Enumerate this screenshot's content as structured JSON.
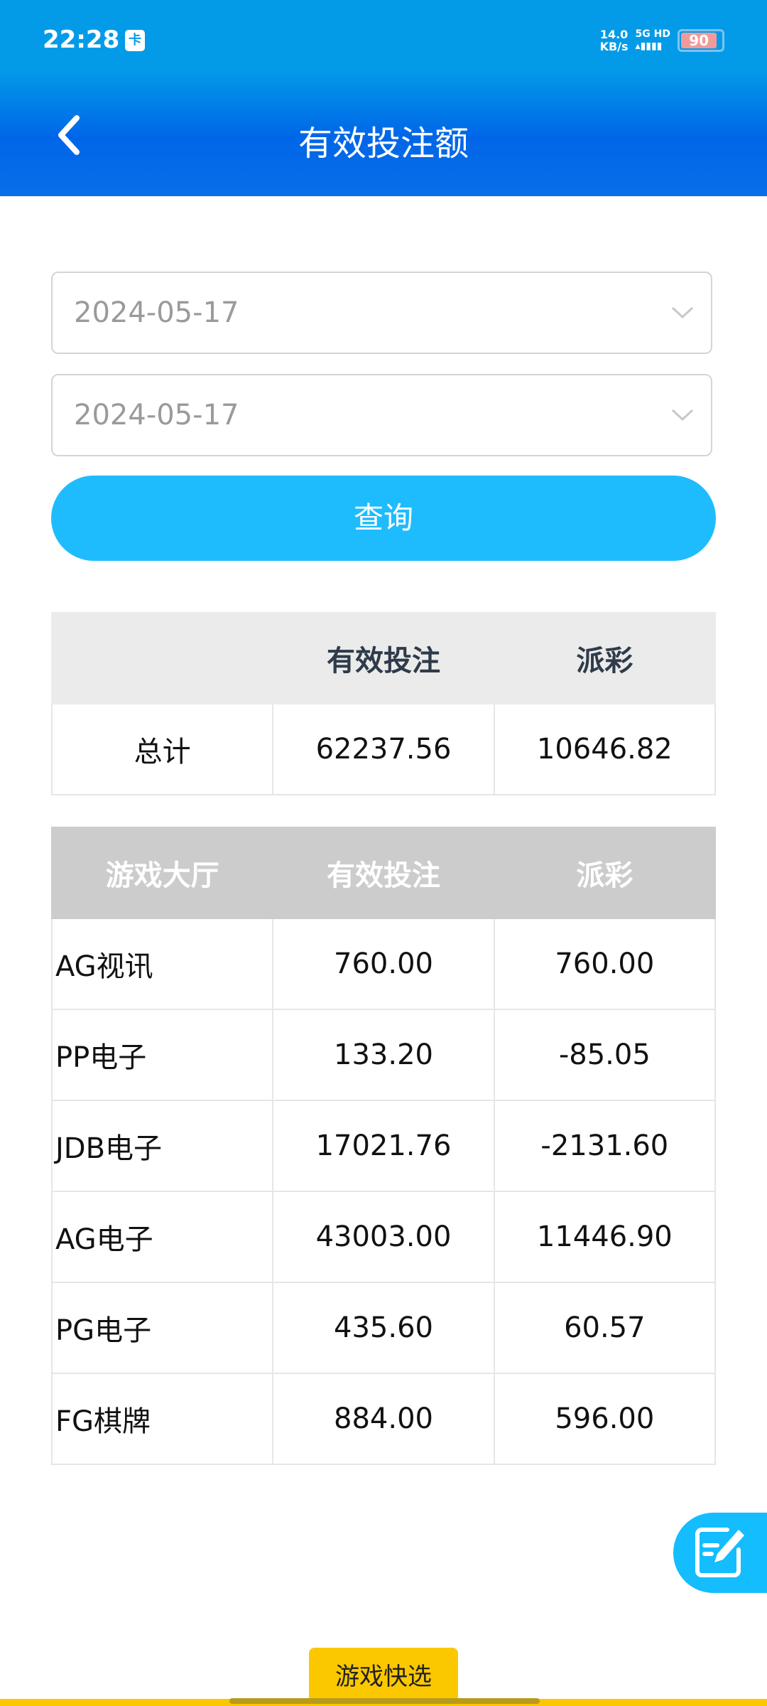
{
  "status_bar": {
    "time": "22:28",
    "sim_icon": "sim-card-icon",
    "speed": "14.0",
    "speed_unit": "KB/s",
    "network": "5G HD",
    "battery": "90"
  },
  "header": {
    "title": "有效投注额",
    "back_icon": "chevron-left-icon"
  },
  "filters": {
    "start_date": "2024-05-17",
    "end_date": "2024-05-17",
    "query_label": "查询"
  },
  "summary": {
    "headers": [
      "",
      "有效投注",
      "派彩"
    ],
    "row": {
      "label": "总计",
      "bet": "62237.56",
      "payout": "10646.82"
    }
  },
  "details": {
    "headers": [
      "游戏大厅",
      "有效投注",
      "派彩"
    ],
    "rows": [
      {
        "hall": "AG视讯",
        "bet": "760.00",
        "payout": "760.00"
      },
      {
        "hall": "PP电子",
        "bet": "133.20",
        "payout": "-85.05"
      },
      {
        "hall": "JDB电子",
        "bet": "17021.76",
        "payout": "-2131.60"
      },
      {
        "hall": "AG电子",
        "bet": "43003.00",
        "payout": "11446.90"
      },
      {
        "hall": "PG电子",
        "bet": "435.60",
        "payout": "60.57"
      },
      {
        "hall": "FG棋牌",
        "bet": "884.00",
        "payout": "596.00"
      }
    ]
  },
  "fab": {
    "icon": "edit-note-icon"
  },
  "bottom": {
    "quick_select": "游戏快选"
  },
  "colors": {
    "accent": "#1fbcfd",
    "header": "#0066e8",
    "tab": "#fbc800"
  }
}
